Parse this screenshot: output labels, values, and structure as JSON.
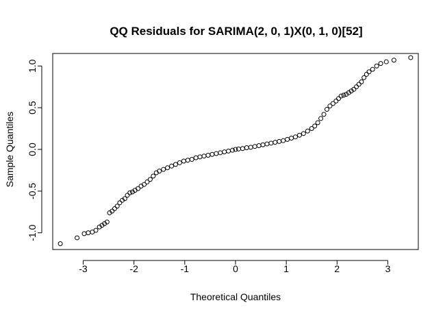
{
  "chart_data": {
    "type": "scatter",
    "title": "QQ Residuals for SARIMA(2, 0, 1)X(0, 1, 0)[52]",
    "xlabel": "Theoretical Quantiles",
    "ylabel": "Sample Quantiles",
    "xlim": [
      -3.6,
      3.6
    ],
    "ylim": [
      -1.2,
      1.15
    ],
    "xticks": [
      -3,
      -2,
      -1,
      0,
      1,
      2,
      3
    ],
    "xtick_labels": [
      "-3",
      "-2",
      "-1",
      "0",
      "1",
      "2",
      "3"
    ],
    "yticks": [
      -1.0,
      -0.5,
      0.0,
      0.5,
      1.0
    ],
    "ytick_labels": [
      "-1.0",
      "-0.5",
      "0.0",
      "0.5",
      "1.0"
    ],
    "grid": false,
    "marker": "open-circle",
    "points": [
      [
        -3.45,
        -1.13
      ],
      [
        -3.12,
        -1.06
      ],
      [
        -2.98,
        -1.01
      ],
      [
        -2.9,
        -1.0
      ],
      [
        -2.82,
        -0.99
      ],
      [
        -2.75,
        -0.97
      ],
      [
        -2.68,
        -0.93
      ],
      [
        -2.63,
        -0.91
      ],
      [
        -2.58,
        -0.89
      ],
      [
        -2.53,
        -0.87
      ],
      [
        -2.48,
        -0.76
      ],
      [
        -2.43,
        -0.74
      ],
      [
        -2.38,
        -0.71
      ],
      [
        -2.33,
        -0.68
      ],
      [
        -2.28,
        -0.64
      ],
      [
        -2.23,
        -0.61
      ],
      [
        -2.18,
        -0.59
      ],
      [
        -2.13,
        -0.55
      ],
      [
        -2.08,
        -0.52
      ],
      [
        -2.03,
        -0.51
      ],
      [
        -1.98,
        -0.49
      ],
      [
        -1.92,
        -0.47
      ],
      [
        -1.86,
        -0.44
      ],
      [
        -1.8,
        -0.42
      ],
      [
        -1.74,
        -0.39
      ],
      [
        -1.68,
        -0.36
      ],
      [
        -1.62,
        -0.32
      ],
      [
        -1.56,
        -0.28
      ],
      [
        -1.5,
        -0.26
      ],
      [
        -1.42,
        -0.24
      ],
      [
        -1.34,
        -0.22
      ],
      [
        -1.26,
        -0.2
      ],
      [
        -1.18,
        -0.18
      ],
      [
        -1.1,
        -0.16
      ],
      [
        -1.02,
        -0.14
      ],
      [
        -0.94,
        -0.13
      ],
      [
        -0.86,
        -0.12
      ],
      [
        -0.78,
        -0.1
      ],
      [
        -0.7,
        -0.09
      ],
      [
        -0.62,
        -0.08
      ],
      [
        -0.54,
        -0.07
      ],
      [
        -0.46,
        -0.06
      ],
      [
        -0.38,
        -0.05
      ],
      [
        -0.3,
        -0.04
      ],
      [
        -0.22,
        -0.03
      ],
      [
        -0.14,
        -0.02
      ],
      [
        -0.06,
        -0.01
      ],
      [
        0.0,
        0.0
      ],
      [
        0.06,
        0.005
      ],
      [
        0.14,
        0.01
      ],
      [
        0.22,
        0.02
      ],
      [
        0.3,
        0.025
      ],
      [
        0.38,
        0.035
      ],
      [
        0.46,
        0.045
      ],
      [
        0.54,
        0.055
      ],
      [
        0.62,
        0.065
      ],
      [
        0.7,
        0.075
      ],
      [
        0.78,
        0.085
      ],
      [
        0.86,
        0.095
      ],
      [
        0.94,
        0.105
      ],
      [
        1.02,
        0.12
      ],
      [
        1.1,
        0.135
      ],
      [
        1.18,
        0.15
      ],
      [
        1.26,
        0.17
      ],
      [
        1.34,
        0.19
      ],
      [
        1.42,
        0.22
      ],
      [
        1.5,
        0.25
      ],
      [
        1.56,
        0.28
      ],
      [
        1.62,
        0.32
      ],
      [
        1.68,
        0.37
      ],
      [
        1.74,
        0.42
      ],
      [
        1.8,
        0.48
      ],
      [
        1.86,
        0.52
      ],
      [
        1.92,
        0.55
      ],
      [
        1.98,
        0.58
      ],
      [
        2.03,
        0.61
      ],
      [
        2.08,
        0.64
      ],
      [
        2.13,
        0.65
      ],
      [
        2.18,
        0.66
      ],
      [
        2.23,
        0.68
      ],
      [
        2.28,
        0.7
      ],
      [
        2.33,
        0.72
      ],
      [
        2.38,
        0.75
      ],
      [
        2.43,
        0.78
      ],
      [
        2.48,
        0.81
      ],
      [
        2.53,
        0.86
      ],
      [
        2.58,
        0.9
      ],
      [
        2.63,
        0.93
      ],
      [
        2.7,
        0.96
      ],
      [
        2.78,
        1.0
      ],
      [
        2.86,
        1.03
      ],
      [
        2.97,
        1.05
      ],
      [
        3.12,
        1.07
      ],
      [
        3.45,
        1.1
      ]
    ]
  }
}
